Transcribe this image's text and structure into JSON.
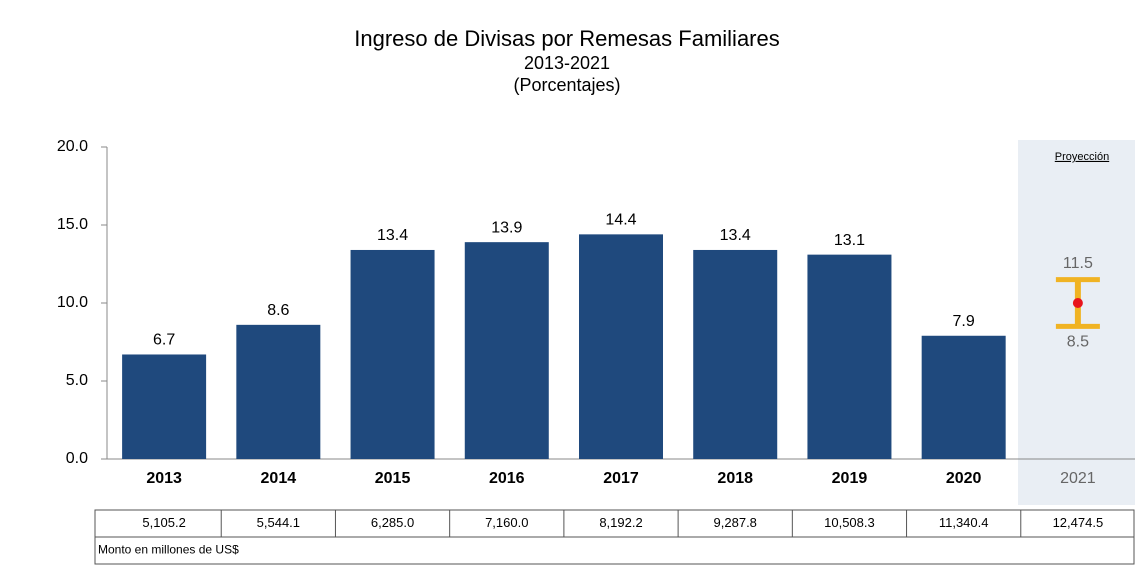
{
  "chart_data": {
    "type": "bar",
    "title": "Ingreso de Divisas por Remesas Familiares",
    "subtitle": [
      "2013-2021",
      "(Porcentajes)"
    ],
    "categories": [
      "2013",
      "2014",
      "2015",
      "2016",
      "2017",
      "2018",
      "2019",
      "2020",
      "2021"
    ],
    "values": [
      6.7,
      8.6,
      13.4,
      13.9,
      14.4,
      13.4,
      13.1,
      7.9,
      null
    ],
    "color": "#1f497d",
    "ylim": [
      0,
      20
    ],
    "yticks": [
      {
        "value": 0,
        "label": "0.0"
      },
      {
        "value": 5,
        "label": "5.0"
      },
      {
        "value": 10,
        "label": "10.0"
      },
      {
        "value": 15,
        "label": "15.0"
      },
      {
        "value": 20,
        "label": "20.0"
      }
    ],
    "projection": {
      "label": "Proyección",
      "low": 8.5,
      "high": 11.5,
      "point": 10,
      "color": "#f0b323",
      "point_color": "#e8141c"
    },
    "table": {
      "amounts": [
        "5,105.2",
        "5,544.1",
        "6,285.0",
        "7,160.0",
        "8,192.2",
        "9,287.8",
        "10,508.3",
        "11,340.4",
        "12,474.5"
      ],
      "note": "Monto en millones de US$"
    }
  }
}
